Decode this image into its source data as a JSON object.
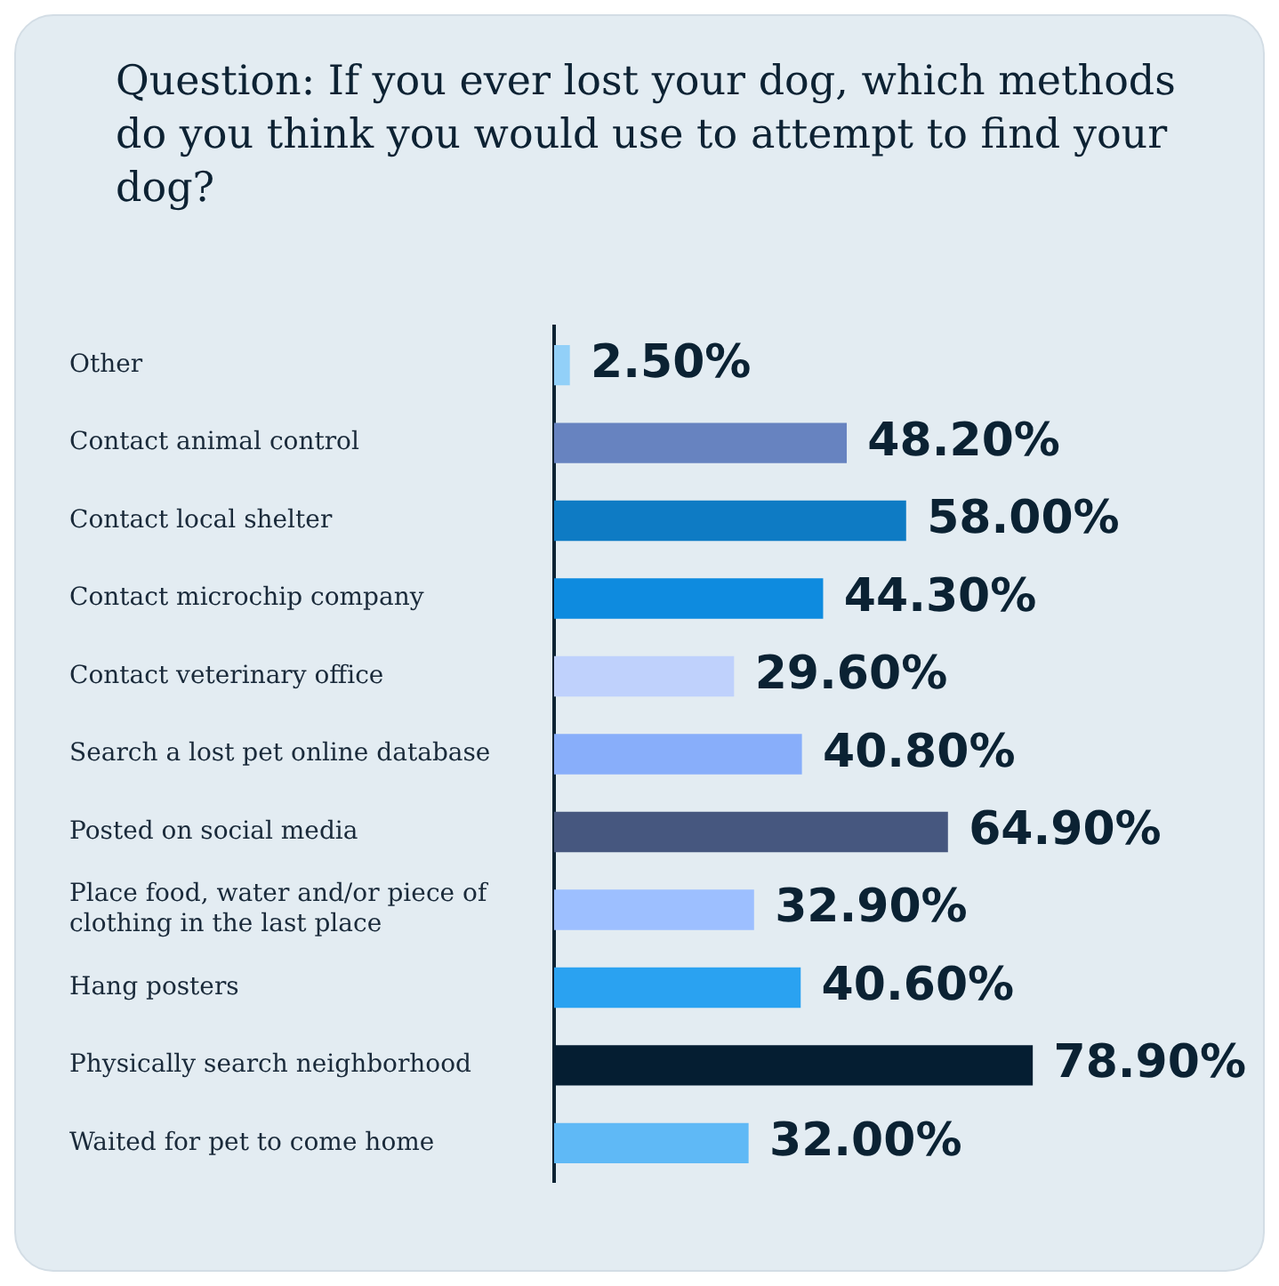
{
  "chart_data": {
    "type": "bar",
    "orientation": "horizontal",
    "title": "Question: If you ever lost your dog, which methods do you think you would use to attempt to find your dog?",
    "categories": [
      "Other",
      "Contact animal control",
      "Contact local shelter",
      "Contact microchip company",
      "Contact veterinary office",
      "Search a lost pet online database",
      "Posted on social media",
      "Place food, water and/or piece of clothing in the last place",
      "Hang posters",
      "Physically search neighborhood",
      "Waited for pet to come home"
    ],
    "values": [
      2.5,
      48.2,
      58.0,
      44.3,
      29.6,
      40.8,
      64.9,
      32.9,
      40.6,
      78.9,
      32.0
    ],
    "colors": [
      "#92d0f8",
      "#6783c0",
      "#0e7bc4",
      "#0e8bdf",
      "#bfd1fc",
      "#88aefa",
      "#46577f",
      "#9dbfff",
      "#2aa2f1",
      "#051e32",
      "#5fb9f6"
    ],
    "value_labels": [
      "2.50%",
      "48.20%",
      "58.00%",
      "44.30%",
      "29.60%",
      "40.80%",
      "64.90%",
      "32.90%",
      "40.60%",
      "78.90%",
      "32.00%"
    ],
    "tick_labels": "y",
    "legend": false
  }
}
